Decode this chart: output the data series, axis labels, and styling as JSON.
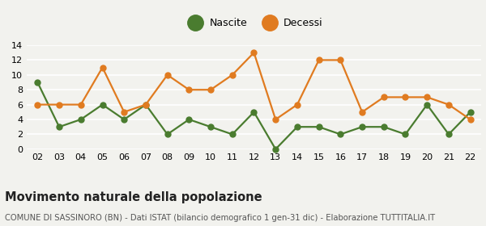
{
  "years": [
    "02",
    "03",
    "04",
    "05",
    "06",
    "07",
    "08",
    "09",
    "10",
    "11",
    "12",
    "13",
    "14",
    "15",
    "16",
    "17",
    "18",
    "19",
    "20",
    "21",
    "22"
  ],
  "nascite": [
    9,
    3,
    4,
    6,
    4,
    6,
    2,
    4,
    3,
    2,
    5,
    0,
    3,
    3,
    2,
    3,
    3,
    2,
    6,
    2,
    5
  ],
  "decessi": [
    6,
    6,
    6,
    11,
    5,
    6,
    10,
    8,
    8,
    10,
    13,
    4,
    6,
    12,
    12,
    5,
    7,
    7,
    7,
    6,
    4
  ],
  "nascite_color": "#4a7c2f",
  "decessi_color": "#e07b20",
  "background_color": "#f2f2ee",
  "grid_color": "#ffffff",
  "title": "Movimento naturale della popolazione",
  "subtitle": "COMUNE DI SASSINORO (BN) - Dati ISTAT (bilancio demografico 1 gen-31 dic) - Elaborazione TUTTITALIA.IT",
  "legend_nascite": "Nascite",
  "legend_decessi": "Decessi",
  "ylim": [
    0,
    14
  ],
  "yticks": [
    0,
    2,
    4,
    6,
    8,
    10,
    12,
    14
  ],
  "title_fontsize": 10.5,
  "subtitle_fontsize": 7.2,
  "tick_fontsize": 8,
  "marker_size": 5,
  "legend_marker_size": 14,
  "line_width": 1.6
}
